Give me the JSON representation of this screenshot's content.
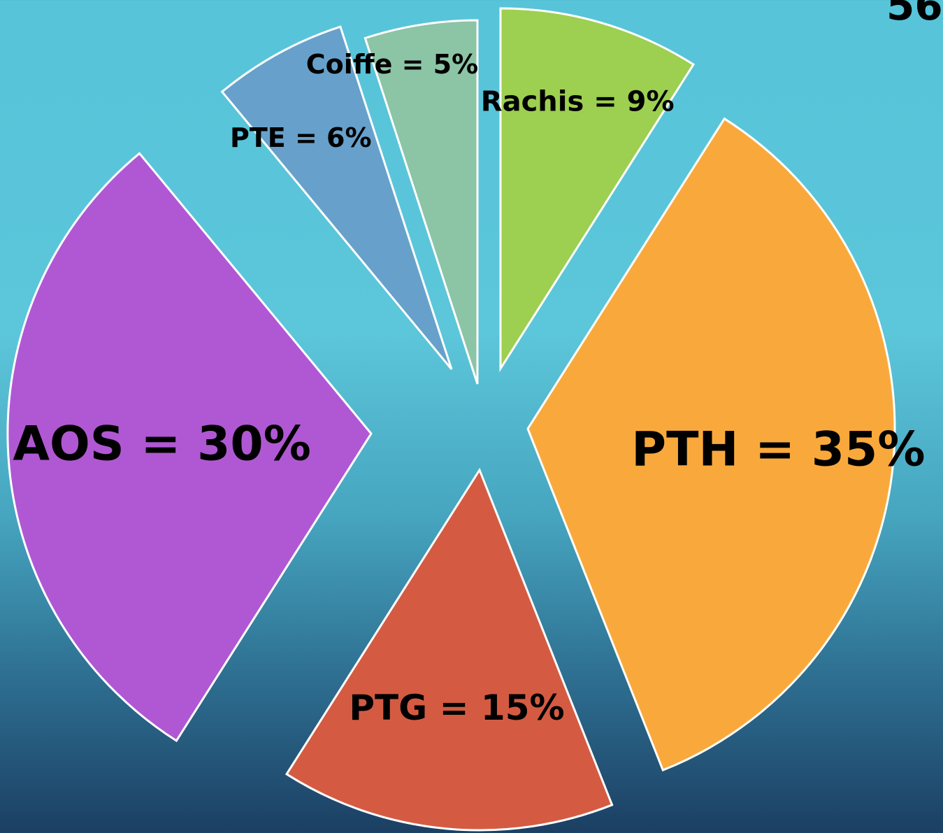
{
  "corner_text": "56",
  "chart_data": {
    "type": "pie",
    "title": "",
    "slices": [
      {
        "label": "Rachis = 9%",
        "value": 9,
        "color": "#9dcf50"
      },
      {
        "label": "PTH = 35%",
        "value": 35,
        "color": "#f9a93c"
      },
      {
        "label": "PTG = 15%",
        "value": 15,
        "color": "#d45b42"
      },
      {
        "label": "AOS = 30%",
        "value": 30,
        "color": "#b058d3"
      },
      {
        "label": "PTE = 6%",
        "value": 6,
        "color": "#67a1cb"
      },
      {
        "label": "Coiffe = 5%",
        "value": 5,
        "color": "#8cc4a6"
      }
    ]
  }
}
